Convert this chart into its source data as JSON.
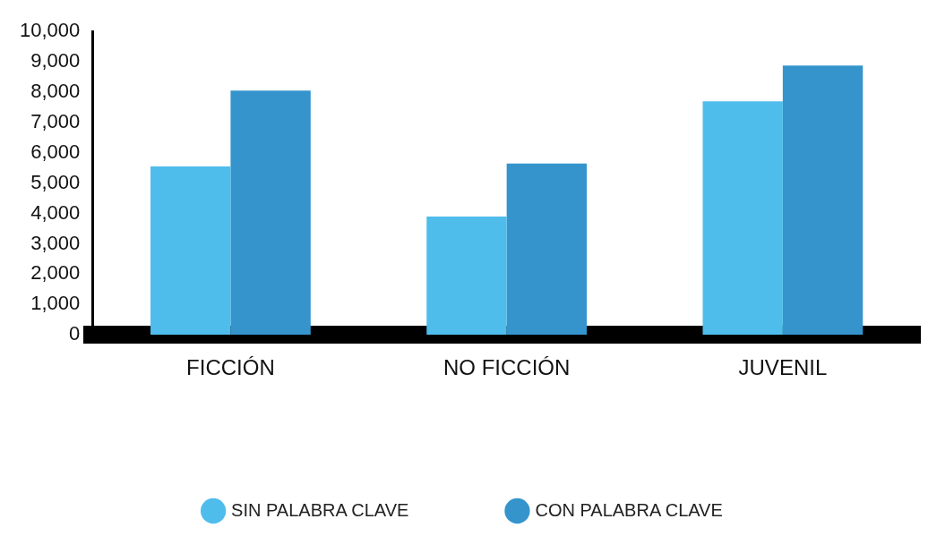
{
  "chart_data": {
    "type": "bar",
    "categories": [
      "FICCIÓN",
      "NO FICCIÓN",
      "JUVENIL"
    ],
    "series": [
      {
        "name": "SIN PALABRA CLAVE",
        "color": "#4fbdeb",
        "values": [
          5550,
          3900,
          7700
        ]
      },
      {
        "name": "CON PALABRA CLAVE",
        "color": "#3594cc",
        "values": [
          8050,
          5650,
          8880
        ]
      }
    ],
    "ylim": [
      0,
      10000
    ],
    "yticks": [
      0,
      {
        "value": 1000,
        "label": "1,000"
      },
      {
        "value": 2000,
        "label": "2,000"
      },
      {
        "value": 3000,
        "label": "3,000"
      },
      {
        "value": 4000,
        "label": "4,000"
      },
      {
        "value": 5000,
        "label": "5,000"
      },
      {
        "value": 6000,
        "label": "6,000"
      },
      {
        "value": 7000,
        "label": "7,000"
      },
      {
        "value": 8000,
        "label": "8,000"
      },
      {
        "value": 9000,
        "label": "9,000"
      },
      {
        "value": 10000,
        "label": "10,000"
      }
    ],
    "grid": false,
    "legend": "bottom"
  }
}
